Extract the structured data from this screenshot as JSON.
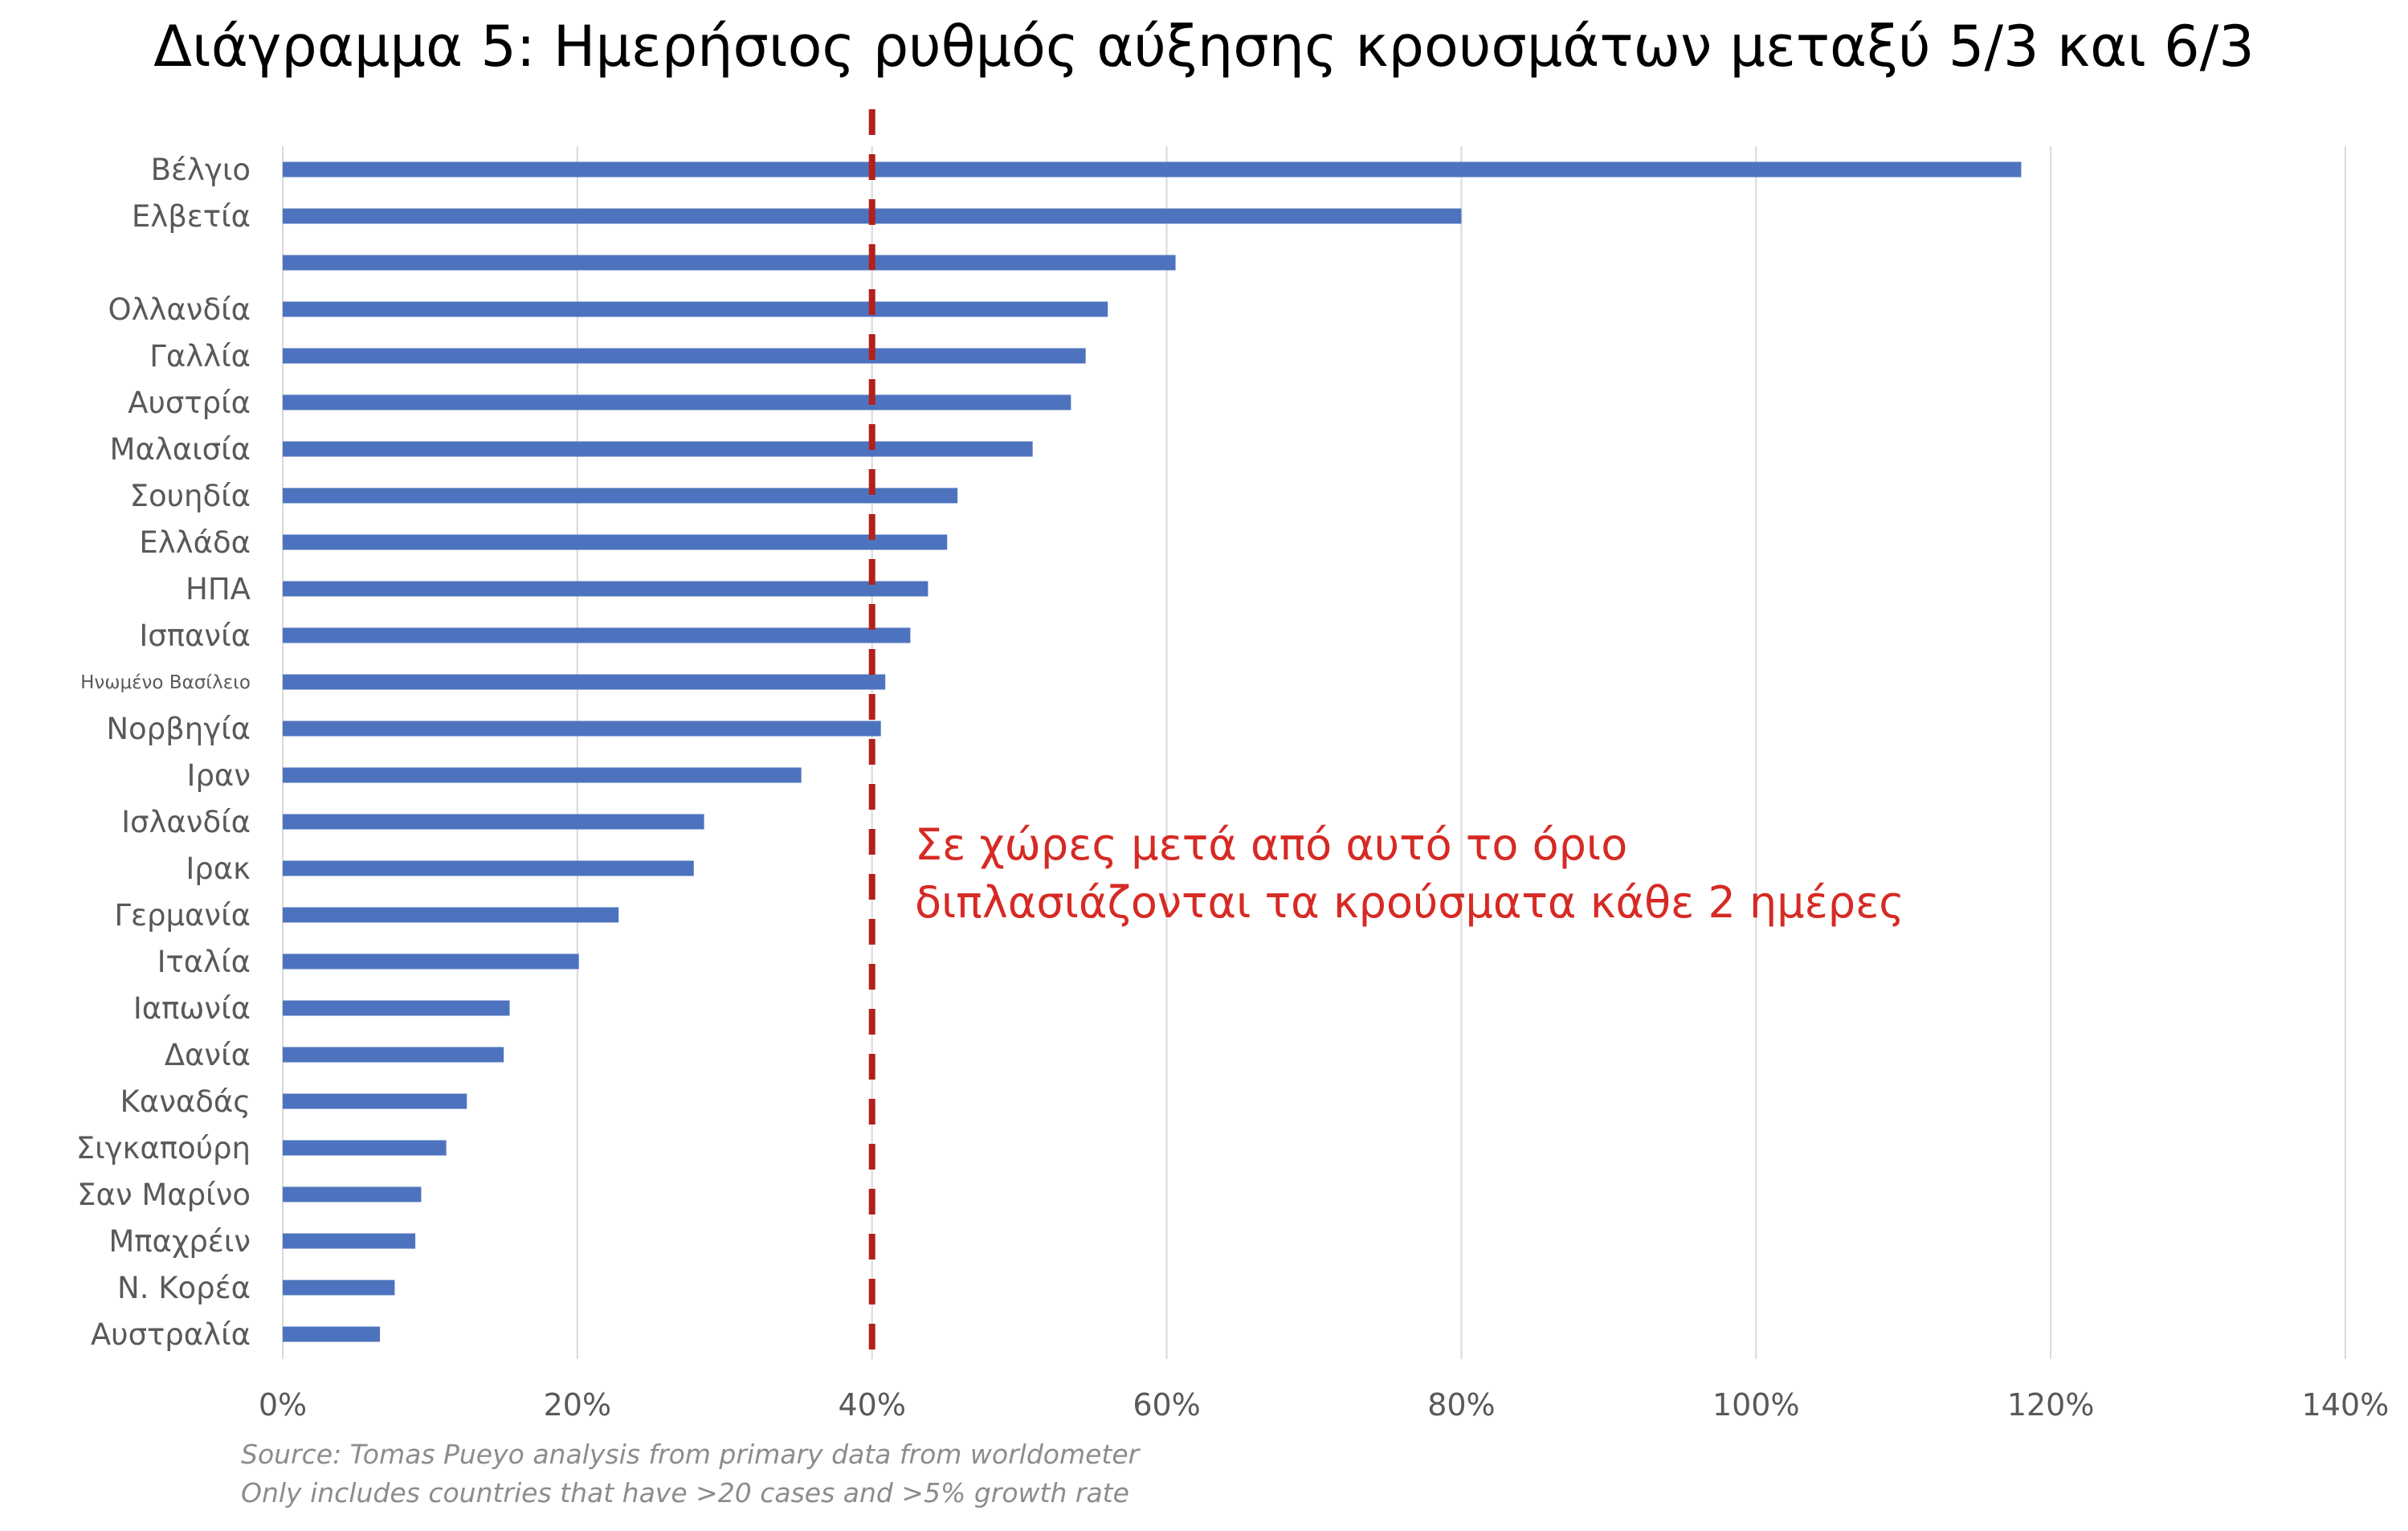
{
  "chart_data": {
    "type": "bar",
    "orientation": "horizontal",
    "title": "Διάγραμμα 5: Ημερήσιος ρυθμός αύξησης κρουσμάτων μεταξύ 5/3 και 6/3",
    "categories": [
      "Βέλγιο",
      "Ελβετία",
      "",
      "Ολλανδία",
      "Γαλλία",
      "Αυστρία",
      "Μαλαισία",
      "Σουηδία",
      "Ελλάδα",
      "ΗΠΑ",
      "Ισπανία",
      "Ηνωμένο Βασίλειο",
      "Νορβηγία",
      "Ιραν",
      "Ισλανδία",
      "Ιρακ",
      "Γερμανία",
      "Ιταλία",
      "Ιαπωνία",
      "Δανία",
      "Καναδάς",
      "Σιγκαπούρη",
      "Σαν Μαρίνο",
      "Μπαχρέιν",
      "Ν. Κορέα",
      "Αυστραλία"
    ],
    "values": [
      118.0,
      80.0,
      60.6,
      56.0,
      54.5,
      53.5,
      50.9,
      45.8,
      45.1,
      43.8,
      42.6,
      40.9,
      40.6,
      35.2,
      28.6,
      27.9,
      22.8,
      20.1,
      15.4,
      15.0,
      12.5,
      11.1,
      9.4,
      9.0,
      7.6,
      6.6
    ],
    "highlight_category": "Ελλάδα",
    "xlim": [
      0,
      140
    ],
    "x_ticks": [
      "0%",
      "20%",
      "40%",
      "60%",
      "80%",
      "100%",
      "120%",
      "140%"
    ],
    "grid": "vertical",
    "reference_line": {
      "value": 40,
      "style": "dashed"
    },
    "annotation": [
      "Σε χώρες μετά από αυτό το όριο",
      "διπλασιάζονται τα κρούσματα κάθε 2 ημέρες"
    ],
    "source_notes": [
      "Source: Tomas Pueyo analysis from primary data from worldometer",
      "Only includes countries that have >20 cases and >5% growth rate"
    ],
    "colors": {
      "bar": "#4e73be",
      "highlight_label": "#a80f0f",
      "reference_line": "#b3201c",
      "annotation": "#d62a24",
      "grid": "#d9d9d9"
    }
  }
}
